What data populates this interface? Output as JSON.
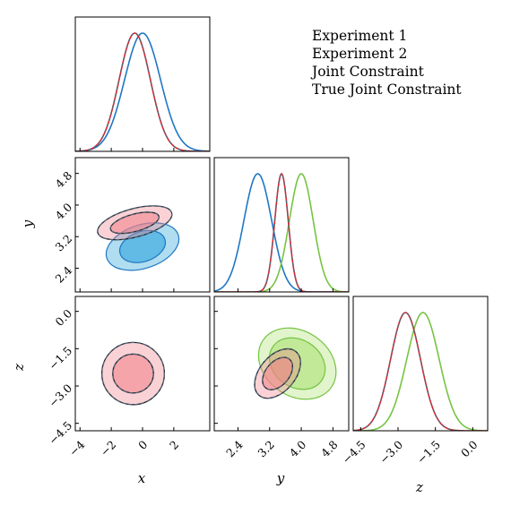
{
  "chart_data": {
    "type": "corner",
    "parameters": [
      {
        "name": "x",
        "label": "x",
        "range": [
          -4.3,
          4.3
        ],
        "ticks": [
          -4,
          -2,
          0,
          2
        ],
        "tick_labels": [
          "−4",
          "−2",
          "0",
          "2"
        ]
      },
      {
        "name": "y",
        "label": "y",
        "range": [
          1.8,
          5.2
        ],
        "ticks": [
          2.4,
          3.2,
          4.0,
          4.8
        ],
        "tick_labels": [
          "2.4",
          "3.2",
          "4.0",
          "4.8"
        ]
      },
      {
        "name": "z",
        "label": "z",
        "range": [
          -4.8,
          0.6
        ],
        "ticks": [
          -4.5,
          -3.0,
          -1.5,
          0.0
        ],
        "tick_labels": [
          "−4.5",
          "−3.0",
          "−1.5",
          "0.0"
        ]
      }
    ],
    "legend": {
      "placement": "top-right",
      "entries": [
        {
          "id": "exp1",
          "label": "Experiment 1",
          "color": "#1f77c4"
        },
        {
          "id": "exp2",
          "label": "Experiment 2",
          "color": "#76c442"
        },
        {
          "id": "joint",
          "label": "Joint Constraint",
          "color": "#e0202a"
        },
        {
          "id": "true",
          "label": "True Joint Constraint",
          "color": "#546677"
        }
      ]
    },
    "series": [
      {
        "id": "exp1",
        "name": "Experiment 1",
        "color": "#1f77c4",
        "fill": "#1f9fd8",
        "mean": {
          "x": 0.0,
          "y": 2.9
        },
        "sd": {
          "x": 1.15,
          "y": 0.35
        },
        "contours": [
          {
            "pair": [
              "x",
              "y"
            ],
            "center": [
              0.0,
              2.95
            ],
            "s1": [
              1.5,
              0.38
            ],
            "s2": [
              2.4,
              0.55
            ],
            "angle": -18
          }
        ]
      },
      {
        "id": "exp2",
        "name": "Experiment 2",
        "color": "#76c442",
        "fill": "#a8e06c",
        "mean": {
          "y": 4.0,
          "z": -2.0
        },
        "sd": {
          "y": 0.3,
          "z": 0.65
        },
        "contours": [
          {
            "pair": [
              "y",
              "z"
            ],
            "center": [
              3.9,
              -2.1
            ],
            "s1": [
              0.75,
              0.95
            ],
            "s2": [
              1.05,
              1.3
            ],
            "angle": 35
          }
        ]
      },
      {
        "id": "joint",
        "name": "Joint Constraint",
        "color": "#e0202a",
        "fill": "#f07f86",
        "mean": {
          "x": -0.5,
          "y": 3.5,
          "z": -2.7
        },
        "sd": {
          "x": 1.0,
          "y": 0.17,
          "z": 0.6
        },
        "contours": [
          {
            "pair": [
              "x",
              "y"
            ],
            "center": [
              -0.5,
              3.55
            ],
            "s1": [
              1.6,
              0.22
            ],
            "s2": [
              2.45,
              0.36
            ],
            "angle": -15
          },
          {
            "pair": [
              "x",
              "z"
            ],
            "center": [
              -0.6,
              -2.5
            ],
            "s1": [
              1.3,
              0.78
            ],
            "s2": [
              2.0,
              1.25
            ],
            "angle": 0
          },
          {
            "pair": [
              "y",
              "z"
            ],
            "center": [
              3.4,
              -2.5
            ],
            "s1": [
              0.3,
              0.75
            ],
            "s2": [
              0.45,
              1.15
            ],
            "angle": 40
          }
        ]
      },
      {
        "id": "true",
        "name": "True Joint Constraint",
        "color": "#546677",
        "fill": "none",
        "mean": {
          "x": -0.5,
          "y": 3.5,
          "z": -2.7
        },
        "sd": {
          "x": 1.0,
          "y": 0.17,
          "z": 0.6
        },
        "contours": [
          {
            "pair": [
              "x",
              "y"
            ],
            "center": [
              -0.5,
              3.55
            ],
            "s1": [
              1.6,
              0.22
            ],
            "s2": [
              2.45,
              0.36
            ],
            "angle": -15
          },
          {
            "pair": [
              "x",
              "z"
            ],
            "center": [
              -0.6,
              -2.5
            ],
            "s1": [
              1.3,
              0.78
            ],
            "s2": [
              2.0,
              1.25
            ],
            "angle": 0
          },
          {
            "pair": [
              "y",
              "z"
            ],
            "center": [
              3.4,
              -2.5
            ],
            "s1": [
              0.3,
              0.75
            ],
            "s2": [
              0.45,
              1.15
            ],
            "angle": 40
          }
        ]
      }
    ]
  }
}
